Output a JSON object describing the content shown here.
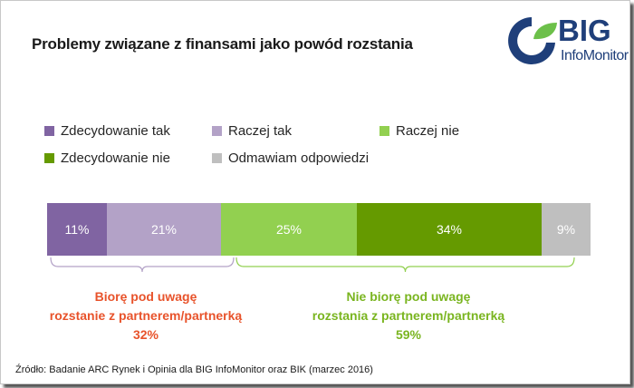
{
  "title": "Problemy związane z finansami jako powód rozstania",
  "logo": {
    "big": "BIG",
    "sub": "InfoMonitor",
    "colors": {
      "blue": "#1f3f7a",
      "green": "#6cc04a"
    }
  },
  "chart_data": {
    "type": "bar",
    "stacked": true,
    "orientation": "horizontal",
    "categories": [
      ""
    ],
    "series": [
      {
        "name": "Zdecydowanie tak",
        "values": [
          11
        ],
        "label": "11%",
        "color": "#8064a2"
      },
      {
        "name": "Raczej tak",
        "values": [
          21
        ],
        "label": "21%",
        "color": "#b3a2c7"
      },
      {
        "name": "Raczej nie",
        "values": [
          25
        ],
        "label": "25%",
        "color": "#92d050"
      },
      {
        "name": "Zdecydowanie nie",
        "values": [
          34
        ],
        "label": "34%",
        "color": "#659a00"
      },
      {
        "name": "Odmawiam odpowiedzi",
        "values": [
          9
        ],
        "label": "9%",
        "color": "#bfbfbf"
      }
    ],
    "xlim": [
      0,
      100
    ],
    "legend_position": "top",
    "grid": false
  },
  "groups": {
    "left": {
      "line1": "Biorę pod uwagę",
      "line2": "rozstanie z partnerem/partnerką",
      "value": "32%",
      "color": "#e8532b"
    },
    "right": {
      "line1": "Nie biorę pod uwagę",
      "line2": "rozstania z partnerem/partnerką",
      "value": "59%",
      "color": "#7ab520"
    }
  },
  "source": "Źródło: Badanie ARC Rynek i Opinia dla BIG InfoMonitor oraz BIK (marzec 2016)"
}
